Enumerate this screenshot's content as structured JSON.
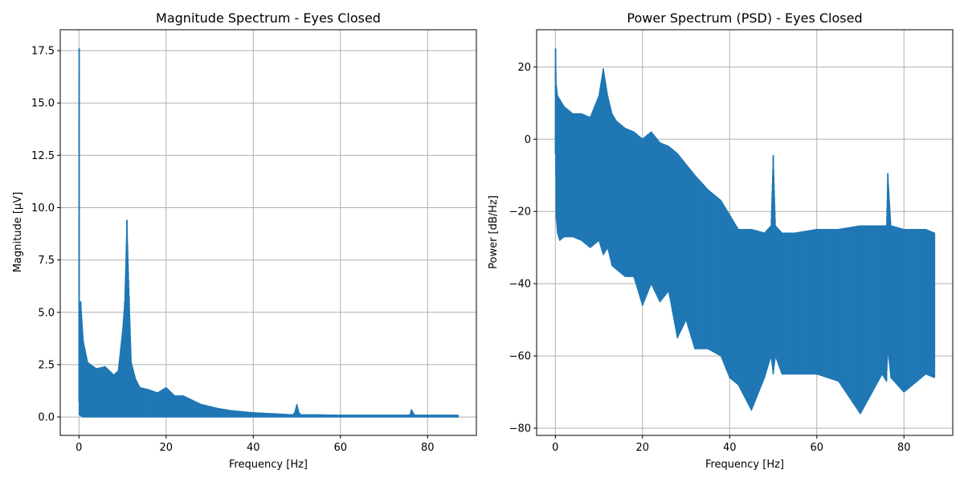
{
  "chart_data": [
    {
      "type": "line",
      "title": "Magnitude Spectrum - Eyes Closed",
      "xlabel": "Frequency [Hz]",
      "ylabel": "Magnitude [µV]",
      "xlim": [
        -4.3,
        91.2
      ],
      "ylim": [
        -0.88,
        18.5
      ],
      "xticks": [
        0,
        20,
        40,
        60,
        80
      ],
      "xtick_labels": [
        "0",
        "20",
        "40",
        "60",
        "80"
      ],
      "yticks": [
        0.0,
        2.5,
        5.0,
        7.5,
        10.0,
        12.5,
        15.0,
        17.5
      ],
      "ytick_labels": [
        "0.0",
        "2.5",
        "5.0",
        "7.5",
        "10.0",
        "12.5",
        "15.0",
        "17.5"
      ],
      "grid": true,
      "color": "#1f77b4",
      "series": [
        {
          "x": [
            0.0,
            0.05,
            0.1,
            0.2,
            0.4,
            1,
            2,
            4,
            6,
            8,
            9,
            10,
            10.5,
            11,
            11.5,
            12,
            13,
            14,
            16,
            18,
            20,
            22,
            24,
            26,
            28,
            30,
            32,
            35,
            40,
            45,
            49,
            49.5,
            50,
            50.5,
            51,
            55,
            60,
            65,
            70,
            75,
            76,
            76.3,
            77,
            80,
            85,
            87
          ],
          "upper": [
            0.7,
            17.6,
            5.5,
            3.5,
            5.5,
            3.6,
            2.6,
            2.3,
            2.4,
            2.0,
            2.2,
            4.1,
            5.5,
            9.4,
            5.8,
            2.6,
            1.8,
            1.4,
            1.3,
            1.15,
            1.4,
            1.0,
            1.0,
            0.8,
            0.6,
            0.5,
            0.4,
            0.3,
            0.2,
            0.15,
            0.1,
            0.2,
            0.6,
            0.2,
            0.1,
            0.1,
            0.08,
            0.08,
            0.08,
            0.08,
            0.1,
            0.35,
            0.08,
            0.08,
            0.08,
            0.08
          ],
          "lower": [
            0.7,
            0.7,
            0.1,
            0.1,
            0.05,
            0.0,
            0.0,
            0.0,
            0.0,
            0.0,
            0.0,
            0.0,
            0.0,
            0.0,
            0.0,
            0.0,
            0.0,
            0.0,
            0.0,
            0.0,
            0.0,
            0.0,
            0.0,
            0.0,
            0.0,
            0.0,
            0.0,
            0.0,
            0.0,
            0.0,
            0.0,
            0.0,
            0.0,
            0.0,
            0.0,
            0.0,
            0.0,
            0.0,
            0.0,
            0.0,
            0.0,
            0.0,
            0.0,
            0.0,
            0.0,
            0.0
          ]
        }
      ]
    },
    {
      "type": "line",
      "title": "Power Spectrum (PSD) - Eyes Closed",
      "xlabel": "Frequency [Hz]",
      "ylabel": "Power [dB/Hz]",
      "xlim": [
        -4.3,
        91.2
      ],
      "ylim": [
        -82,
        30.3
      ],
      "xticks": [
        0,
        20,
        40,
        60,
        80
      ],
      "xtick_labels": [
        "0",
        "20",
        "40",
        "60",
        "80"
      ],
      "yticks": [
        -80,
        -60,
        -40,
        -20,
        0,
        20
      ],
      "ytick_labels": [
        "−80",
        "−60",
        "−40",
        "−20",
        "0",
        "20"
      ],
      "grid": true,
      "color": "#1f77b4",
      "series": [
        {
          "x": [
            0.0,
            0.05,
            0.2,
            0.5,
            1,
            2,
            4,
            6,
            8,
            10,
            11,
            12,
            13,
            14,
            16,
            18,
            20,
            22,
            24,
            26,
            28,
            30,
            32,
            35,
            38,
            40,
            42,
            45,
            48,
            49.5,
            50,
            50.5,
            52,
            55,
            60,
            65,
            70,
            75,
            76,
            76.3,
            77,
            80,
            85,
            87
          ],
          "upper": [
            -4,
            25,
            15,
            12,
            11,
            9,
            7,
            7,
            6,
            12,
            19.5,
            12,
            7,
            5,
            3,
            2,
            0,
            2,
            -1,
            -2,
            -4,
            -7,
            -10,
            -14,
            -17,
            -21,
            -25,
            -25,
            -26,
            -24,
            -4.5,
            -24,
            -26,
            -26,
            -25,
            -25,
            -24,
            -24,
            -24,
            -9.5,
            -24,
            -25,
            -25,
            -26
          ],
          "lower": [
            -4,
            -4,
            -22,
            -26,
            -28,
            -27,
            -27,
            -28,
            -30,
            -28,
            -32,
            -30,
            -35,
            -36,
            -38,
            -38,
            -46,
            -40,
            -45,
            -42,
            -55,
            -50,
            -58,
            -58,
            -60,
            -66,
            -68,
            -75,
            -66,
            -60,
            -65,
            -60,
            -65,
            -65,
            -65,
            -67,
            -76,
            -65,
            -67,
            -58,
            -66,
            -70,
            -65,
            -66
          ]
        }
      ]
    }
  ]
}
